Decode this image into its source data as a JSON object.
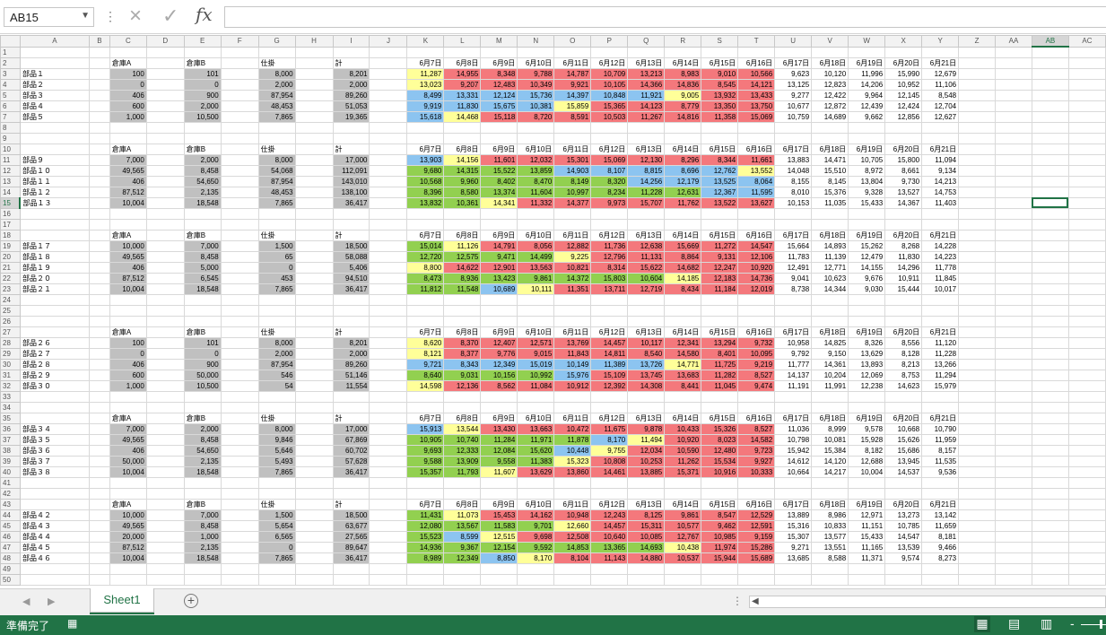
{
  "namebox": {
    "value": "AB15"
  },
  "icons": {
    "cancel": "×",
    "enter": "✓",
    "fx": "fx",
    "dots": "⋮",
    "dropdown": "▼",
    "prev": "◀",
    "next": "▶",
    "add": "+",
    "more": "⋮",
    "scroll_left": "◀"
  },
  "columns": [
    "A",
    "B",
    "C",
    "D",
    "E",
    "F",
    "G",
    "H",
    "I",
    "J",
    "K",
    "L",
    "M",
    "N",
    "O",
    "P",
    "Q",
    "R",
    "S",
    "T",
    "U",
    "V",
    "W",
    "X",
    "Y",
    "Z",
    "AA",
    "AB",
    "AC"
  ],
  "selected": {
    "col": "AB",
    "row": 15
  },
  "header_labels": {
    "whA": "倉庫A",
    "whB": "倉庫B",
    "shikake": "仕掛",
    "total": "計"
  },
  "dates": [
    "6月7日",
    "6月8日",
    "6月9日",
    "6月10日",
    "6月11日",
    "6月12日",
    "6月13日",
    "6月14日",
    "6月15日",
    "6月16日",
    "6月17日",
    "6月18日",
    "6月19日",
    "6月20日",
    "6月21日"
  ],
  "colors": {
    "y": "#ffff99",
    "r": "#f4787c",
    "g": "#92d050",
    "b": "#8cc4f0"
  },
  "blocks": [
    {
      "header_row": 2,
      "start_row": 3,
      "rows": [
        {
          "name": "部品１",
          "a": "100",
          "b": "101",
          "s": "8,000",
          "t": "8,201",
          "v": [
            "11,287",
            "14,955",
            "8,348",
            "9,788",
            "14,787",
            "10,709",
            "13,213",
            "8,983",
            "9,010",
            "10,566",
            "9,623",
            "10,120",
            "11,996",
            "15,990",
            "12,679"
          ],
          "c": "yrrrrrrrrr"
        },
        {
          "name": "部品２",
          "a": "0",
          "b": "0",
          "s": "2,000",
          "t": "2,000",
          "v": [
            "13,023",
            "9,207",
            "12,483",
            "10,349",
            "9,921",
            "10,105",
            "14,366",
            "14,836",
            "8,545",
            "14,121",
            "13,125",
            "12,823",
            "14,206",
            "10,952",
            "11,106"
          ],
          "c": "yrrrrrrrrr"
        },
        {
          "name": "部品３",
          "a": "406",
          "b": "900",
          "s": "87,954",
          "t": "89,260",
          "v": [
            "8,499",
            "13,331",
            "12,124",
            "15,736",
            "14,397",
            "10,848",
            "11,921",
            "9,005",
            "13,932",
            "13,433",
            "9,277",
            "12,422",
            "9,964",
            "12,145",
            "8,548"
          ],
          "c": "bbbbbbbyrr"
        },
        {
          "name": "部品４",
          "a": "600",
          "b": "2,000",
          "s": "48,453",
          "t": "51,053",
          "v": [
            "9,919",
            "11,830",
            "15,675",
            "10,381",
            "15,859",
            "15,365",
            "14,123",
            "8,779",
            "13,350",
            "13,750",
            "10,677",
            "12,872",
            "12,439",
            "12,424",
            "12,704"
          ],
          "c": "bbbbyrrrrr"
        },
        {
          "name": "部品５",
          "a": "1,000",
          "b": "10,500",
          "s": "7,865",
          "t": "19,365",
          "v": [
            "15,618",
            "14,468",
            "15,118",
            "8,720",
            "8,591",
            "10,503",
            "11,267",
            "14,816",
            "11,358",
            "15,069",
            "10,759",
            "14,689",
            "9,662",
            "12,856",
            "12,627"
          ],
          "c": "byrrrrrrrr"
        }
      ]
    },
    {
      "header_row": 10,
      "start_row": 11,
      "rows": [
        {
          "name": "部品９",
          "a": "7,000",
          "b": "2,000",
          "s": "8,000",
          "t": "17,000",
          "v": [
            "13,903",
            "14,156",
            "11,601",
            "12,032",
            "15,301",
            "15,069",
            "12,130",
            "8,296",
            "8,344",
            "11,661",
            "13,883",
            "14,471",
            "10,705",
            "15,800",
            "11,094"
          ],
          "c": "byrrrrrrrr"
        },
        {
          "name": "部品１０",
          "a": "49,565",
          "b": "8,458",
          "s": "54,068",
          "t": "112,091",
          "v": [
            "9,680",
            "14,315",
            "15,522",
            "13,859",
            "14,903",
            "8,107",
            "8,815",
            "8,696",
            "12,762",
            "13,552",
            "14,048",
            "15,510",
            "8,972",
            "8,661",
            "9,134"
          ],
          "c": "ggggbbbbby"
        },
        {
          "name": "部品１１",
          "a": "406",
          "b": "54,650",
          "s": "87,954",
          "t": "143,010",
          "v": [
            "10,568",
            "9,960",
            "8,402",
            "8,470",
            "8,149",
            "8,320",
            "14,256",
            "12,179",
            "13,525",
            "8,064",
            "8,155",
            "8,145",
            "13,804",
            "9,730",
            "14,213"
          ],
          "c": "ggggggbbbb"
        },
        {
          "name": "部品１２",
          "a": "87,512",
          "b": "2,135",
          "s": "48,453",
          "t": "138,100",
          "v": [
            "8,396",
            "8,580",
            "13,374",
            "11,604",
            "10,997",
            "8,234",
            "11,228",
            "12,631",
            "12,367",
            "11,595",
            "8,010",
            "15,376",
            "9,328",
            "13,527",
            "14,753"
          ],
          "c": "ggggggggbb"
        },
        {
          "name": "部品１３",
          "a": "10,004",
          "b": "18,548",
          "s": "7,865",
          "t": "36,417",
          "v": [
            "13,832",
            "10,361",
            "14,341",
            "11,332",
            "14,377",
            "9,973",
            "15,707",
            "11,762",
            "13,522",
            "13,627",
            "10,153",
            "11,035",
            "15,433",
            "14,367",
            "11,403"
          ],
          "c": "ggyrrrrrrr"
        }
      ]
    },
    {
      "header_row": 18,
      "start_row": 19,
      "rows": [
        {
          "name": "部品１７",
          "a": "10,000",
          "b": "7,000",
          "s": "1,500",
          "t": "18,500",
          "v": [
            "15,014",
            "11,126",
            "14,791",
            "8,056",
            "12,882",
            "11,736",
            "12,638",
            "15,669",
            "11,272",
            "14,547",
            "15,664",
            "14,893",
            "15,262",
            "8,268",
            "14,228"
          ],
          "c": "gyrrrrrrrr"
        },
        {
          "name": "部品１８",
          "a": "49,565",
          "b": "8,458",
          "s": "65",
          "t": "58,088",
          "v": [
            "12,720",
            "12,575",
            "9,471",
            "14,499",
            "9,225",
            "12,796",
            "11,131",
            "8,864",
            "9,131",
            "12,106",
            "11,783",
            "11,139",
            "12,479",
            "11,830",
            "14,223"
          ],
          "c": "ggggyrrrrr"
        },
        {
          "name": "部品１９",
          "a": "406",
          "b": "5,000",
          "s": "0",
          "t": "5,406",
          "v": [
            "8,800",
            "14,622",
            "12,901",
            "13,563",
            "10,821",
            "8,314",
            "15,622",
            "14,682",
            "12,247",
            "10,920",
            "12,491",
            "12,771",
            "14,155",
            "14,296",
            "11,778"
          ],
          "c": "yrrrrrrrrr"
        },
        {
          "name": "部品２０",
          "a": "87,512",
          "b": "6,545",
          "s": "453",
          "t": "94,510",
          "v": [
            "8,473",
            "8,936",
            "13,423",
            "9,861",
            "14,372",
            "15,803",
            "10,604",
            "14,185",
            "12,183",
            "14,736",
            "9,041",
            "10,623",
            "9,676",
            "10,911",
            "11,845"
          ],
          "c": "gggggggyrr"
        },
        {
          "name": "部品２１",
          "a": "10,004",
          "b": "18,548",
          "s": "7,865",
          "t": "36,417",
          "v": [
            "11,812",
            "11,548",
            "10,689",
            "10,111",
            "11,351",
            "13,711",
            "12,719",
            "8,434",
            "11,184",
            "12,019",
            "8,738",
            "14,344",
            "9,030",
            "15,444",
            "10,017"
          ],
          "c": "ggbyrrrrrr"
        }
      ]
    },
    {
      "header_row": 27,
      "start_row": 28,
      "rows": [
        {
          "name": "部品２６",
          "a": "100",
          "b": "101",
          "s": "8,000",
          "t": "8,201",
          "v": [
            "8,620",
            "8,370",
            "12,407",
            "12,571",
            "13,769",
            "14,457",
            "10,117",
            "12,341",
            "13,294",
            "9,732",
            "10,958",
            "14,825",
            "8,326",
            "8,556",
            "11,120"
          ],
          "c": "yrrrrrrrrr"
        },
        {
          "name": "部品２７",
          "a": "0",
          "b": "0",
          "s": "2,000",
          "t": "2,000",
          "v": [
            "8,121",
            "8,377",
            "9,776",
            "9,015",
            "11,843",
            "14,811",
            "8,540",
            "14,580",
            "8,401",
            "10,095",
            "9,792",
            "9,150",
            "13,629",
            "8,128",
            "11,228"
          ],
          "c": "yrrrrrrrrr"
        },
        {
          "name": "部品２８",
          "a": "406",
          "b": "900",
          "s": "87,954",
          "t": "89,260",
          "v": [
            "9,721",
            "8,343",
            "12,349",
            "15,019",
            "10,149",
            "11,389",
            "13,726",
            "14,771",
            "11,725",
            "9,219",
            "11,777",
            "14,361",
            "13,893",
            "8,213",
            "13,266"
          ],
          "c": "bbbbbbbyrr"
        },
        {
          "name": "部品２９",
          "a": "600",
          "b": "50,000",
          "s": "546",
          "t": "51,146",
          "v": [
            "8,640",
            "9,031",
            "10,156",
            "10,992",
            "15,976",
            "15,109",
            "13,745",
            "13,683",
            "11,282",
            "8,527",
            "14,137",
            "10,204",
            "12,069",
            "8,753",
            "11,294"
          ],
          "c": "ggggbrrrrr"
        },
        {
          "name": "部品３０",
          "a": "1,000",
          "b": "10,500",
          "s": "54",
          "t": "11,554",
          "v": [
            "14,598",
            "12,136",
            "8,562",
            "11,084",
            "10,912",
            "12,392",
            "14,308",
            "8,441",
            "11,045",
            "9,474",
            "11,191",
            "11,991",
            "12,238",
            "14,623",
            "15,979"
          ],
          "c": "yrrrrrrrrr"
        }
      ]
    },
    {
      "header_row": 35,
      "start_row": 36,
      "rows": [
        {
          "name": "部品３４",
          "a": "7,000",
          "b": "2,000",
          "s": "8,000",
          "t": "17,000",
          "v": [
            "15,913",
            "13,544",
            "13,430",
            "13,663",
            "10,472",
            "11,675",
            "9,878",
            "10,433",
            "15,326",
            "8,527",
            "11,036",
            "8,999",
            "9,578",
            "10,668",
            "10,790"
          ],
          "c": "byrrrrrrrr"
        },
        {
          "name": "部品３５",
          "a": "49,565",
          "b": "8,458",
          "s": "9,846",
          "t": "67,869",
          "v": [
            "10,905",
            "10,740",
            "11,284",
            "11,971",
            "11,878",
            "8,170",
            "11,494",
            "10,920",
            "8,023",
            "14,582",
            "10,798",
            "10,081",
            "15,928",
            "15,626",
            "11,959"
          ],
          "c": "gggggbyrrr"
        },
        {
          "name": "部品３６",
          "a": "406",
          "b": "54,650",
          "s": "5,646",
          "t": "60,702",
          "v": [
            "9,693",
            "12,333",
            "12,084",
            "15,620",
            "10,448",
            "9,755",
            "12,034",
            "10,590",
            "12,480",
            "9,723",
            "15,942",
            "15,384",
            "8,182",
            "15,686",
            "8,157"
          ],
          "c": "ggggbyrrrr"
        },
        {
          "name": "部品３７",
          "a": "50,000",
          "b": "2,135",
          "s": "5,493",
          "t": "57,628",
          "v": [
            "9,588",
            "13,909",
            "9,558",
            "11,383",
            "15,323",
            "10,808",
            "10,253",
            "11,262",
            "15,534",
            "9,927",
            "14,612",
            "14,120",
            "12,688",
            "13,945",
            "11,535"
          ],
          "c": "ggggyrrrrr"
        },
        {
          "name": "部品３８",
          "a": "10,004",
          "b": "18,548",
          "s": "7,865",
          "t": "36,417",
          "v": [
            "15,357",
            "11,793",
            "11,607",
            "13,629",
            "13,860",
            "14,461",
            "13,885",
            "15,371",
            "10,916",
            "10,333",
            "10,664",
            "14,217",
            "10,004",
            "14,537",
            "9,536"
          ],
          "c": "ggyrrrrrrr"
        }
      ]
    },
    {
      "header_row": 43,
      "start_row": 44,
      "rows": [
        {
          "name": "部品４２",
          "a": "10,000",
          "b": "7,000",
          "s": "1,500",
          "t": "18,500",
          "v": [
            "11,431",
            "11,073",
            "15,453",
            "14,162",
            "10,948",
            "12,243",
            "8,125",
            "9,861",
            "8,547",
            "12,529",
            "13,889",
            "8,986",
            "12,971",
            "13,273",
            "13,142"
          ],
          "c": "gyrrrrrrrr"
        },
        {
          "name": "部品４３",
          "a": "49,565",
          "b": "8,458",
          "s": "5,654",
          "t": "63,677",
          "v": [
            "12,080",
            "13,567",
            "11,583",
            "9,701",
            "12,660",
            "14,457",
            "15,311",
            "10,577",
            "9,462",
            "12,591",
            "15,316",
            "10,833",
            "11,151",
            "10,785",
            "11,659"
          ],
          "c": "ggggyrrrrr"
        },
        {
          "name": "部品４４",
          "a": "20,000",
          "b": "1,000",
          "s": "6,565",
          "t": "27,565",
          "v": [
            "15,523",
            "8,599",
            "12,515",
            "9,698",
            "12,508",
            "10,640",
            "10,085",
            "12,767",
            "10,985",
            "9,159",
            "15,307",
            "13,577",
            "15,433",
            "14,547",
            "8,181"
          ],
          "c": "gbyrrrrrrr"
        },
        {
          "name": "部品４５",
          "a": "87,512",
          "b": "2,135",
          "s": "0",
          "t": "89,647",
          "v": [
            "14,936",
            "9,367",
            "12,154",
            "9,592",
            "14,853",
            "13,365",
            "14,693",
            "10,438",
            "11,974",
            "15,286",
            "9,271",
            "13,551",
            "11,165",
            "13,539",
            "9,466"
          ],
          "c": "gggggggyrr"
        },
        {
          "name": "部品４６",
          "a": "10,004",
          "b": "18,548",
          "s": "7,865",
          "t": "36,417",
          "v": [
            "8,989",
            "12,349",
            "8,850",
            "8,170",
            "8,104",
            "11,143",
            "14,880",
            "10,537",
            "15,944",
            "15,689",
            "13,685",
            "8,588",
            "11,371",
            "9,574",
            "8,273"
          ],
          "c": "ggbyrrrrrr"
        }
      ]
    }
  ],
  "sheet_tab": "Sheet1",
  "status": "準備完了"
}
